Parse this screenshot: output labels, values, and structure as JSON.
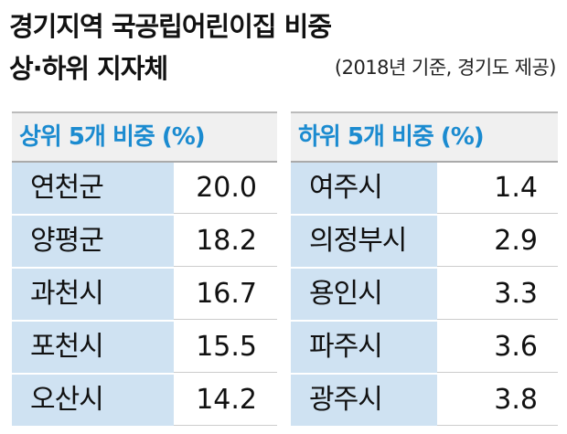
{
  "header": {
    "title": "경기지역 국공립어린이집 비중",
    "subtitle": "상·하위 지자체",
    "note": "(2018년 기준, 경기도 제공)"
  },
  "tables": [
    {
      "header": "상위 5개 비중 (%)",
      "rows": [
        [
          "연천군",
          "20.0"
        ],
        [
          "양평군",
          "18.2"
        ],
        [
          "과천시",
          "16.7"
        ],
        [
          "포천시",
          "15.5"
        ],
        [
          "오산시",
          "14.2"
        ]
      ]
    },
    {
      "header": "하위 5개 비중 (%)",
      "rows": [
        [
          "여주시",
          "1.4"
        ],
        [
          "의정부시",
          "2.9"
        ],
        [
          "용인시",
          "3.3"
        ],
        [
          "파주시",
          "3.6"
        ],
        [
          "광주시",
          "3.8"
        ]
      ]
    }
  ]
}
